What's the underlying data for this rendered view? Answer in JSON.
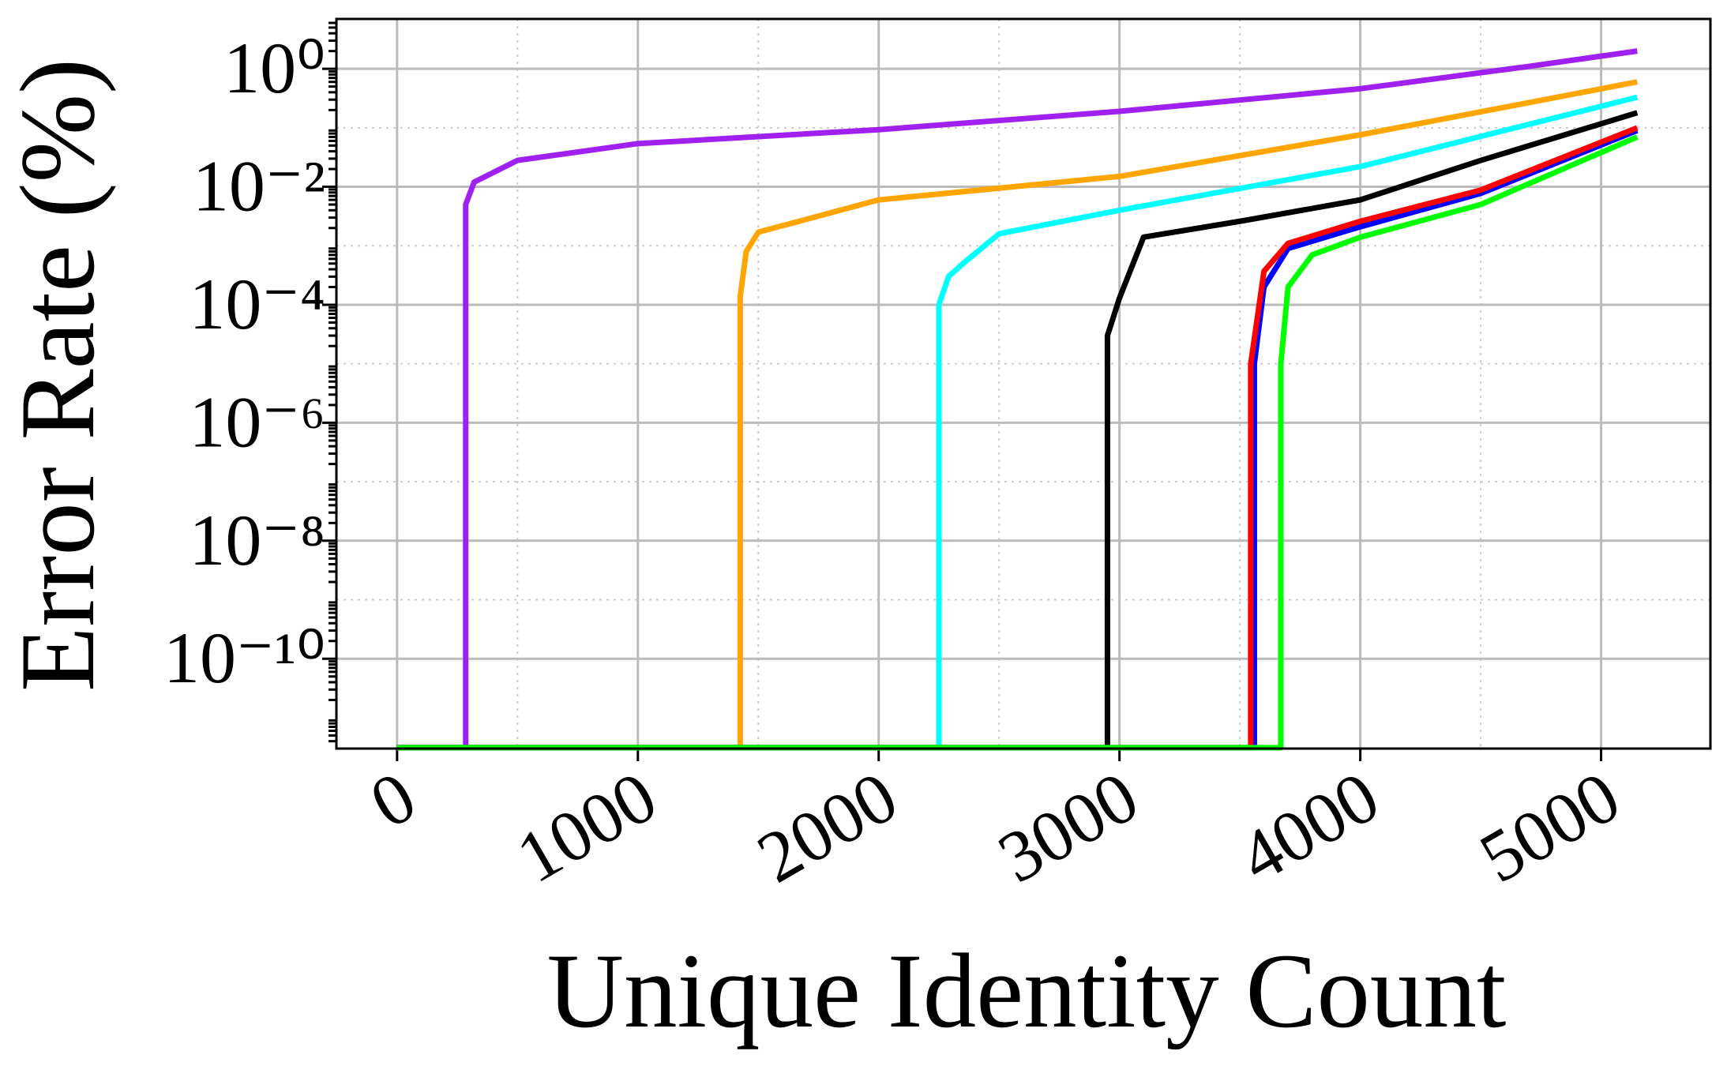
{
  "chart_data": {
    "type": "line",
    "xlabel": "Unique Identity Count",
    "ylabel": "Error Rate (%)",
    "yscale": "log",
    "grid": true,
    "minor_grid": true,
    "xlim": [
      -252,
      5454
    ],
    "ylim": [
      3e-12,
      7
    ],
    "xticks": [
      0,
      1000,
      2000,
      3000,
      4000,
      5000
    ],
    "yticks": [
      {
        "value": 1,
        "label": "10⁰"
      },
      {
        "value": 0.01,
        "label": "10⁻²"
      },
      {
        "value": 0.0001,
        "label": "10⁻⁴"
      },
      {
        "value": 1e-06,
        "label": "10⁻⁶"
      },
      {
        "value": 1e-08,
        "label": "10⁻⁸"
      },
      {
        "value": 1e-10,
        "label": "10⁻¹⁰"
      }
    ],
    "series": [
      {
        "color": "#a020f0",
        "x": [
          0,
          285,
          285,
          320,
          500,
          1000,
          2000,
          3000,
          4000,
          4700,
          5150
        ],
        "values": [
          3.1e-12,
          3.1e-12,
          0.005,
          0.012,
          0.028,
          0.054,
          0.093,
          0.19,
          0.46,
          1.1,
          2
        ]
      },
      {
        "color": "#ffa500",
        "x": [
          0,
          1425,
          1425,
          1450,
          1500,
          2000,
          3000,
          4000,
          5150
        ],
        "values": [
          3.1e-12,
          3.1e-12,
          0.00014,
          0.0008,
          0.0017,
          0.006,
          0.015,
          0.076,
          0.6
        ]
      },
      {
        "color": "#00ffff",
        "x": [
          0,
          2250,
          2250,
          2290,
          2350,
          2500,
          3000,
          4000,
          5150
        ],
        "values": [
          3.1e-12,
          3.1e-12,
          0.0001,
          0.0003,
          0.0005,
          0.0016,
          0.004,
          0.022,
          0.33
        ]
      },
      {
        "color": "#000000",
        "x": [
          0,
          2950,
          2950,
          3000,
          3100,
          3500,
          4000,
          4500,
          5150
        ],
        "values": [
          3.1e-12,
          3.1e-12,
          3e-05,
          0.00013,
          0.0014,
          0.0026,
          0.006,
          0.028,
          0.18
        ]
      },
      {
        "color": "#0000ff",
        "x": [
          0,
          3560,
          3560,
          3600,
          3700,
          4000,
          4500,
          5150
        ],
        "values": [
          3.1e-12,
          3.1e-12,
          1e-05,
          0.0002,
          0.0009,
          0.0021,
          0.0077,
          0.09
        ]
      },
      {
        "color": "#ff0000",
        "x": [
          0,
          3545,
          3545,
          3600,
          3700,
          4000,
          4500,
          5150
        ],
        "values": [
          3.1e-12,
          3.1e-12,
          1e-05,
          0.00037,
          0.0011,
          0.0026,
          0.0088,
          0.1
        ]
      },
      {
        "color": "#00ff00",
        "x": [
          0,
          3670,
          3670,
          3700,
          3800,
          4000,
          4500,
          5150
        ],
        "values": [
          3.1e-12,
          3.1e-12,
          1e-05,
          0.0002,
          0.0007,
          0.0014,
          0.005,
          0.07
        ]
      }
    ]
  }
}
